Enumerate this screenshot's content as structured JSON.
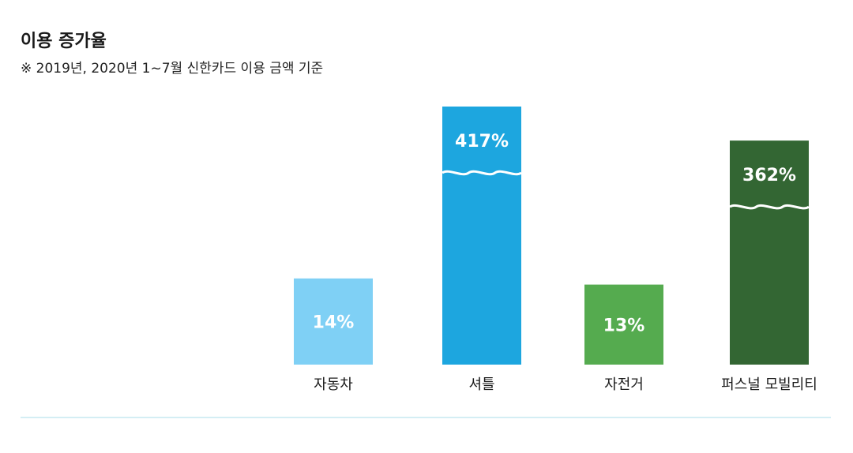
{
  "header": {
    "title": "이용 증가율",
    "subtitle": "※ 2019년, 2020년 1~7월 신한카드 이용 금액 기준"
  },
  "chart_data": {
    "type": "bar",
    "title": "이용 증가율",
    "subtitle": "※ 2019년, 2020년 1~7월 신한카드 이용 금액 기준",
    "categories": [
      "자동차",
      "셔틀",
      "자전거",
      "퍼스널 모빌리티"
    ],
    "values": [
      14,
      417,
      13,
      362
    ],
    "value_labels": [
      "14%",
      "417%",
      "13%",
      "362%"
    ],
    "unit": "%",
    "axis_break": true,
    "grid": false,
    "legend": "none",
    "colors": [
      "#7FD0F5",
      "#1DA6DF",
      "#55AB4F",
      "#336633"
    ],
    "baseline_color": "#A9DCE8"
  }
}
